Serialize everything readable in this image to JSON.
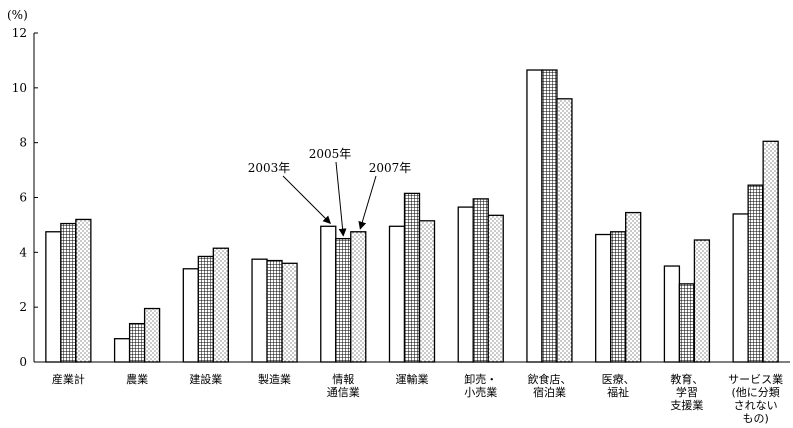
{
  "chart_data": {
    "type": "bar",
    "y_unit": "(%)",
    "ylim": [
      0,
      12
    ],
    "yticks": [
      "0",
      "2",
      "4",
      "6",
      "8",
      "10",
      "12"
    ],
    "grid": false,
    "legend": "none",
    "categories": [
      [
        "産業計"
      ],
      [
        "農業"
      ],
      [
        "建設業"
      ],
      [
        "製造業"
      ],
      [
        "情報",
        "通信業"
      ],
      [
        "運輸業"
      ],
      [
        "卸売・",
        "小売業"
      ],
      [
        "飲食店、",
        "宿泊業"
      ],
      [
        "医療、",
        "福祉"
      ],
      [
        "教育、",
        "学習",
        "支援業"
      ],
      [
        "サービス業",
        "(他に分類",
        "されない",
        "もの)"
      ]
    ],
    "series": [
      {
        "name": "2003年",
        "pattern": "plain",
        "values": [
          4.75,
          0.85,
          3.4,
          3.75,
          4.95,
          4.95,
          5.65,
          10.65,
          4.65,
          3.5,
          5.4
        ]
      },
      {
        "name": "2005年",
        "pattern": "grid",
        "values": [
          5.05,
          1.4,
          3.85,
          3.7,
          4.5,
          6.15,
          5.95,
          10.65,
          4.75,
          2.85,
          6.45
        ]
      },
      {
        "name": "2007年",
        "pattern": "dotted",
        "values": [
          5.2,
          1.95,
          4.15,
          3.6,
          4.75,
          5.15,
          5.35,
          9.6,
          5.45,
          4.45,
          8.05
        ]
      }
    ],
    "annotations": [
      {
        "text": "2003年",
        "category_index": 4,
        "series_index": 0
      },
      {
        "text": "2005年",
        "category_index": 4,
        "series_index": 1
      },
      {
        "text": "2007年",
        "category_index": 4,
        "series_index": 2
      }
    ],
    "colors": {
      "bar_stroke": "#000000",
      "bar_fill": "#ffffff",
      "pattern_ink": "#000000"
    }
  }
}
